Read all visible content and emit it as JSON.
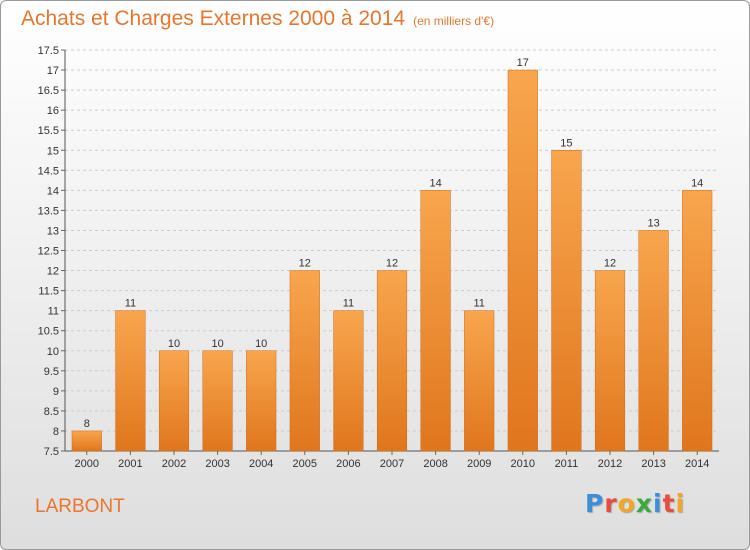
{
  "title": "Achats et Charges Externes 2000 à 2014",
  "subtitle": "(en milliers d'€)",
  "commune": "LARBONT",
  "logo": {
    "letters": [
      "P",
      "r",
      "o",
      "x",
      "i",
      "t",
      "i"
    ],
    "colors": [
      "#3a8fd8",
      "#e94b3c",
      "#f2a623",
      "#3aaa3a",
      "#3a8fd8",
      "#e94b3c",
      "#f2a623"
    ]
  },
  "colors": {
    "bar_top": "#f8a64e",
    "bar_bottom": "#e0761d",
    "accent": "#e8762c",
    "grid": "#cccccc"
  },
  "chart_data": {
    "type": "bar",
    "categories": [
      "2000",
      "2001",
      "2002",
      "2003",
      "2004",
      "2005",
      "2006",
      "2007",
      "2008",
      "2009",
      "2010",
      "2011",
      "2012",
      "2013",
      "2014"
    ],
    "values": [
      8,
      11,
      10,
      10,
      10,
      12,
      11,
      12,
      14,
      11,
      17,
      15,
      12,
      13,
      14
    ],
    "data_labels": [
      "8",
      "11",
      "10",
      "10",
      "10",
      "12",
      "11",
      "12",
      "14",
      "11",
      "17",
      "15",
      "12",
      "13",
      "14"
    ],
    "y_ticks": [
      "7.5",
      "8",
      "8.5",
      "9",
      "9.5",
      "10",
      "10.5",
      "11",
      "11.5",
      "12",
      "12.5",
      "13",
      "13.5",
      "14",
      "14.5",
      "15",
      "15.5",
      "16",
      "16.5",
      "17",
      "17.5"
    ],
    "ylim": [
      7.5,
      17.5
    ],
    "grid": true,
    "grid_style": "dashed"
  }
}
